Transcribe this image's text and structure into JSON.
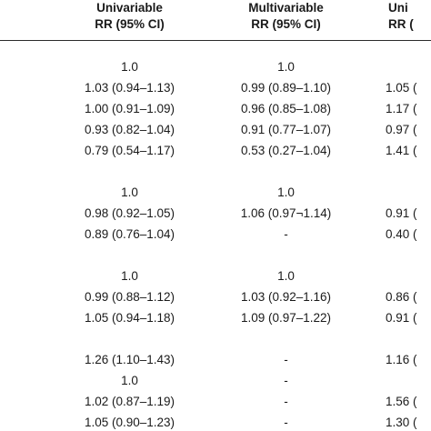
{
  "header": {
    "col1_line1": "Univariable",
    "col1_line2": "RR (95% CI)",
    "col2_line1": "Multivariable",
    "col2_line2": "RR (95% CI)",
    "col3_line1": "Uni",
    "col3_line2": "RR ("
  },
  "rows": [
    {
      "univariable": "1.0",
      "multivariable": "1.0",
      "third": ""
    },
    {
      "univariable": "1.03 (0.94–1.13)",
      "multivariable": "0.99 (0.89–1.10)",
      "third": "1.05 ("
    },
    {
      "univariable": "1.00 (0.91–1.09)",
      "multivariable": "0.96 (0.85–1.08)",
      "third": "1.17 ("
    },
    {
      "univariable": "0.93 (0.82–1.04)",
      "multivariable": "0.91 (0.77–1.07)",
      "third": "0.97 ("
    },
    {
      "univariable": "0.79 (0.54–1.17)",
      "multivariable": "0.53 (0.27–1.04)",
      "third": "1.41 ("
    },
    {
      "univariable": "1.0",
      "multivariable": "1.0",
      "third": ""
    },
    {
      "univariable": "0.98 (0.92–1.05)",
      "multivariable": "1.06 (0.97¬1.14)",
      "third": "0.91 ("
    },
    {
      "univariable": "0.89 (0.76–1.04)",
      "multivariable": "-",
      "third": "0.40 ("
    },
    {
      "univariable": "1.0",
      "multivariable": "1.0",
      "third": ""
    },
    {
      "univariable": "0.99 (0.88–1.12)",
      "multivariable": "1.03 (0.92–1.16)",
      "third": "0.86 ("
    },
    {
      "univariable": "1.05 (0.94–1.18)",
      "multivariable": "1.09 (0.97–1.22)",
      "third": "0.91 ("
    },
    {
      "univariable": "1.26 (1.10–1.43)",
      "multivariable": "-",
      "third": "1.16 ("
    },
    {
      "univariable": "1.0",
      "multivariable": "-",
      "third": ""
    },
    {
      "univariable": "1.02 (0.87–1.19)",
      "multivariable": "-",
      "third": "1.56 ("
    },
    {
      "univariable": "1.05 (0.90–1.23)",
      "multivariable": "-",
      "third": "1.30 ("
    }
  ]
}
